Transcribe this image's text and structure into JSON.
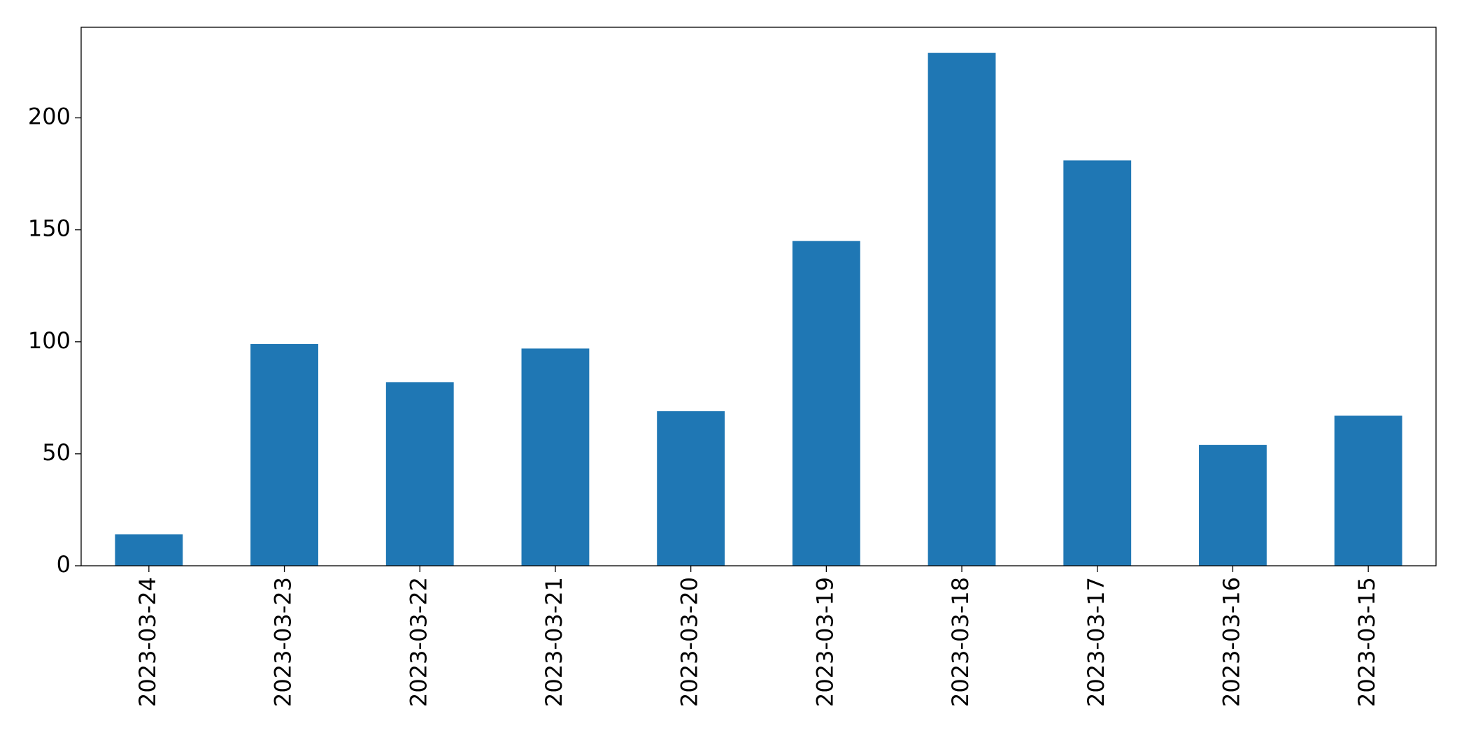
{
  "chart_data": {
    "type": "bar",
    "categories": [
      "2023-03-24",
      "2023-03-23",
      "2023-03-22",
      "2023-03-21",
      "2023-03-20",
      "2023-03-19",
      "2023-03-18",
      "2023-03-17",
      "2023-03-16",
      "2023-03-15"
    ],
    "values": [
      14,
      99,
      82,
      97,
      69,
      145,
      229,
      181,
      54,
      67
    ],
    "color": "#1f77b4",
    "ylim": [
      0,
      240.45
    ],
    "yticks": [
      0,
      50,
      100,
      150,
      200
    ],
    "grid": false
  }
}
